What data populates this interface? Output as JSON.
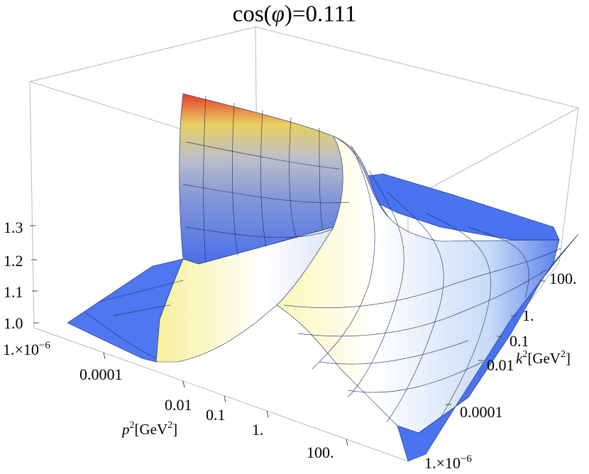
{
  "chart_data": {
    "type": "surface3d",
    "title_prefix": "cos(",
    "title_symbol": "φ",
    "title_suffix": ")=0.111",
    "x_axis": {
      "variable": "p",
      "label_suffix": "[GeV",
      "label_close": "]",
      "exponent": "2",
      "scale": "log",
      "range": [
        1e-06,
        1000
      ],
      "ticks": [
        {
          "value": 1e-06,
          "mantissa": "1.×10",
          "exp": "−6"
        },
        {
          "value": 0.0001,
          "label": "0.0001"
        },
        {
          "value": 0.01,
          "label": "0.01"
        },
        {
          "value": 0.1,
          "label": "0.1"
        },
        {
          "value": 1,
          "label": "1."
        },
        {
          "value": 100,
          "label": "100."
        }
      ]
    },
    "y_axis": {
      "variable": "k",
      "label_suffix": "[GeV",
      "label_close": "]",
      "exponent": "2",
      "scale": "log",
      "range": [
        1e-06,
        1000
      ],
      "ticks": [
        {
          "value": 1e-06,
          "mantissa": "1.×10",
          "exp": "−6"
        },
        {
          "value": 0.0001,
          "label": "0.0001"
        },
        {
          "value": 0.01,
          "label": "0.01"
        },
        {
          "value": 0.1,
          "label": "0.1"
        },
        {
          "value": 1,
          "label": "1."
        },
        {
          "value": 100,
          "label": "100."
        }
      ]
    },
    "z_axis": {
      "range": [
        0.97,
        1.36
      ],
      "ticks": [
        {
          "value": 1.0,
          "label": "1.0"
        },
        {
          "value": 1.1,
          "label": "1.1"
        },
        {
          "value": 1.2,
          "label": "1.2"
        },
        {
          "value": 1.3,
          "label": "1.3"
        }
      ]
    },
    "surface_description_values": {
      "baseline": 1.0,
      "max_value_at_low_p2_high_k2": 1.34,
      "ridge_along": "p2 ≈ k2 region near 0.01–1 GeV2"
    },
    "colormap": [
      "#4a73f0",
      "#ffffff",
      "#f5f08a",
      "#e04030"
    ],
    "grid": "mesh"
  }
}
